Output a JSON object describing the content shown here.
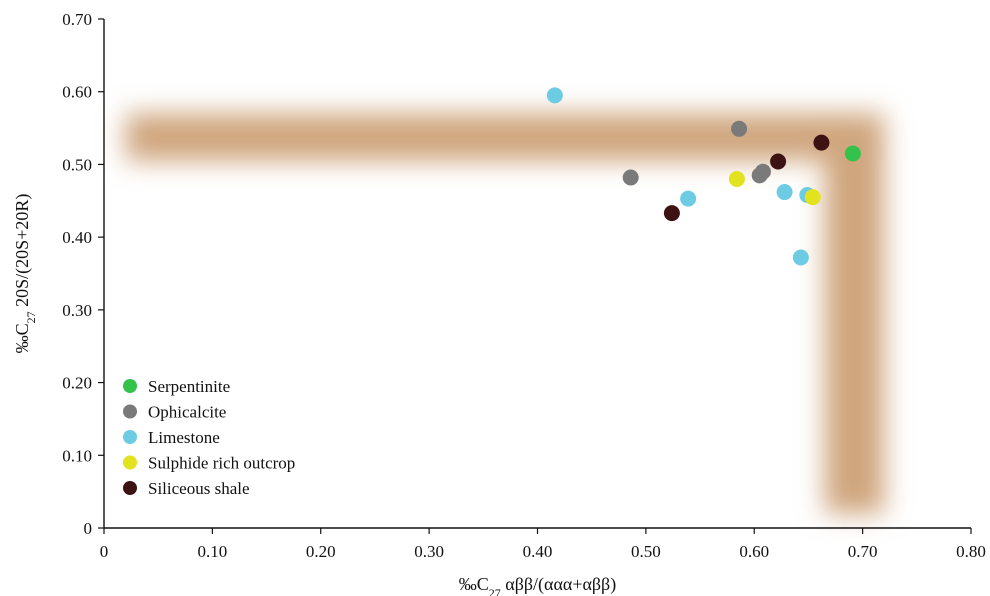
{
  "chart_data": {
    "type": "scatter",
    "title": "",
    "xlabel_parts": [
      "‰C",
      "27",
      " αββ/(ααα+αββ)"
    ],
    "ylabel_parts": [
      "‰C",
      "27",
      " 20S/(20S+20R)"
    ],
    "xlim": [
      0,
      0.8
    ],
    "ylim": [
      0,
      0.7
    ],
    "x_ticks": [
      "0",
      "0.10",
      "0.20",
      "0.30",
      "0.40",
      "0.50",
      "0.60",
      "0.70",
      "0.80"
    ],
    "y_ticks": [
      "0",
      "0.10",
      "0.20",
      "0.30",
      "0.40",
      "0.50",
      "0.60",
      "0.70"
    ],
    "grid": false,
    "legend_position": "bottom-left",
    "band_color": "#cfa57d",
    "band": {
      "horizontal": {
        "x": [
          0.02,
          0.72
        ],
        "y": [
          0.505,
          0.57
        ]
      },
      "vertical": {
        "x": [
          0.665,
          0.72
        ],
        "y": [
          0.02,
          0.57
        ]
      }
    },
    "series": [
      {
        "name": "Serpentinite",
        "color": "#33c24a",
        "points": [
          [
            0.691,
            0.515
          ]
        ]
      },
      {
        "name": "Ophicalcite",
        "color": "#7a7a7a",
        "points": [
          [
            0.486,
            0.482
          ],
          [
            0.586,
            0.549
          ],
          [
            0.605,
            0.485
          ],
          [
            0.608,
            0.49
          ]
        ]
      },
      {
        "name": "Limestone",
        "color": "#6ecbe4",
        "points": [
          [
            0.416,
            0.595
          ],
          [
            0.539,
            0.453
          ],
          [
            0.628,
            0.462
          ],
          [
            0.643,
            0.372
          ],
          [
            0.649,
            0.458
          ]
        ]
      },
      {
        "name": "Sulphide rich outcrop",
        "color": "#e2e21f",
        "points": [
          [
            0.584,
            0.48
          ],
          [
            0.654,
            0.455
          ]
        ]
      },
      {
        "name": "Siliceous shale",
        "color": "#3d1212",
        "points": [
          [
            0.524,
            0.433
          ],
          [
            0.622,
            0.504
          ],
          [
            0.662,
            0.53
          ]
        ]
      }
    ]
  }
}
